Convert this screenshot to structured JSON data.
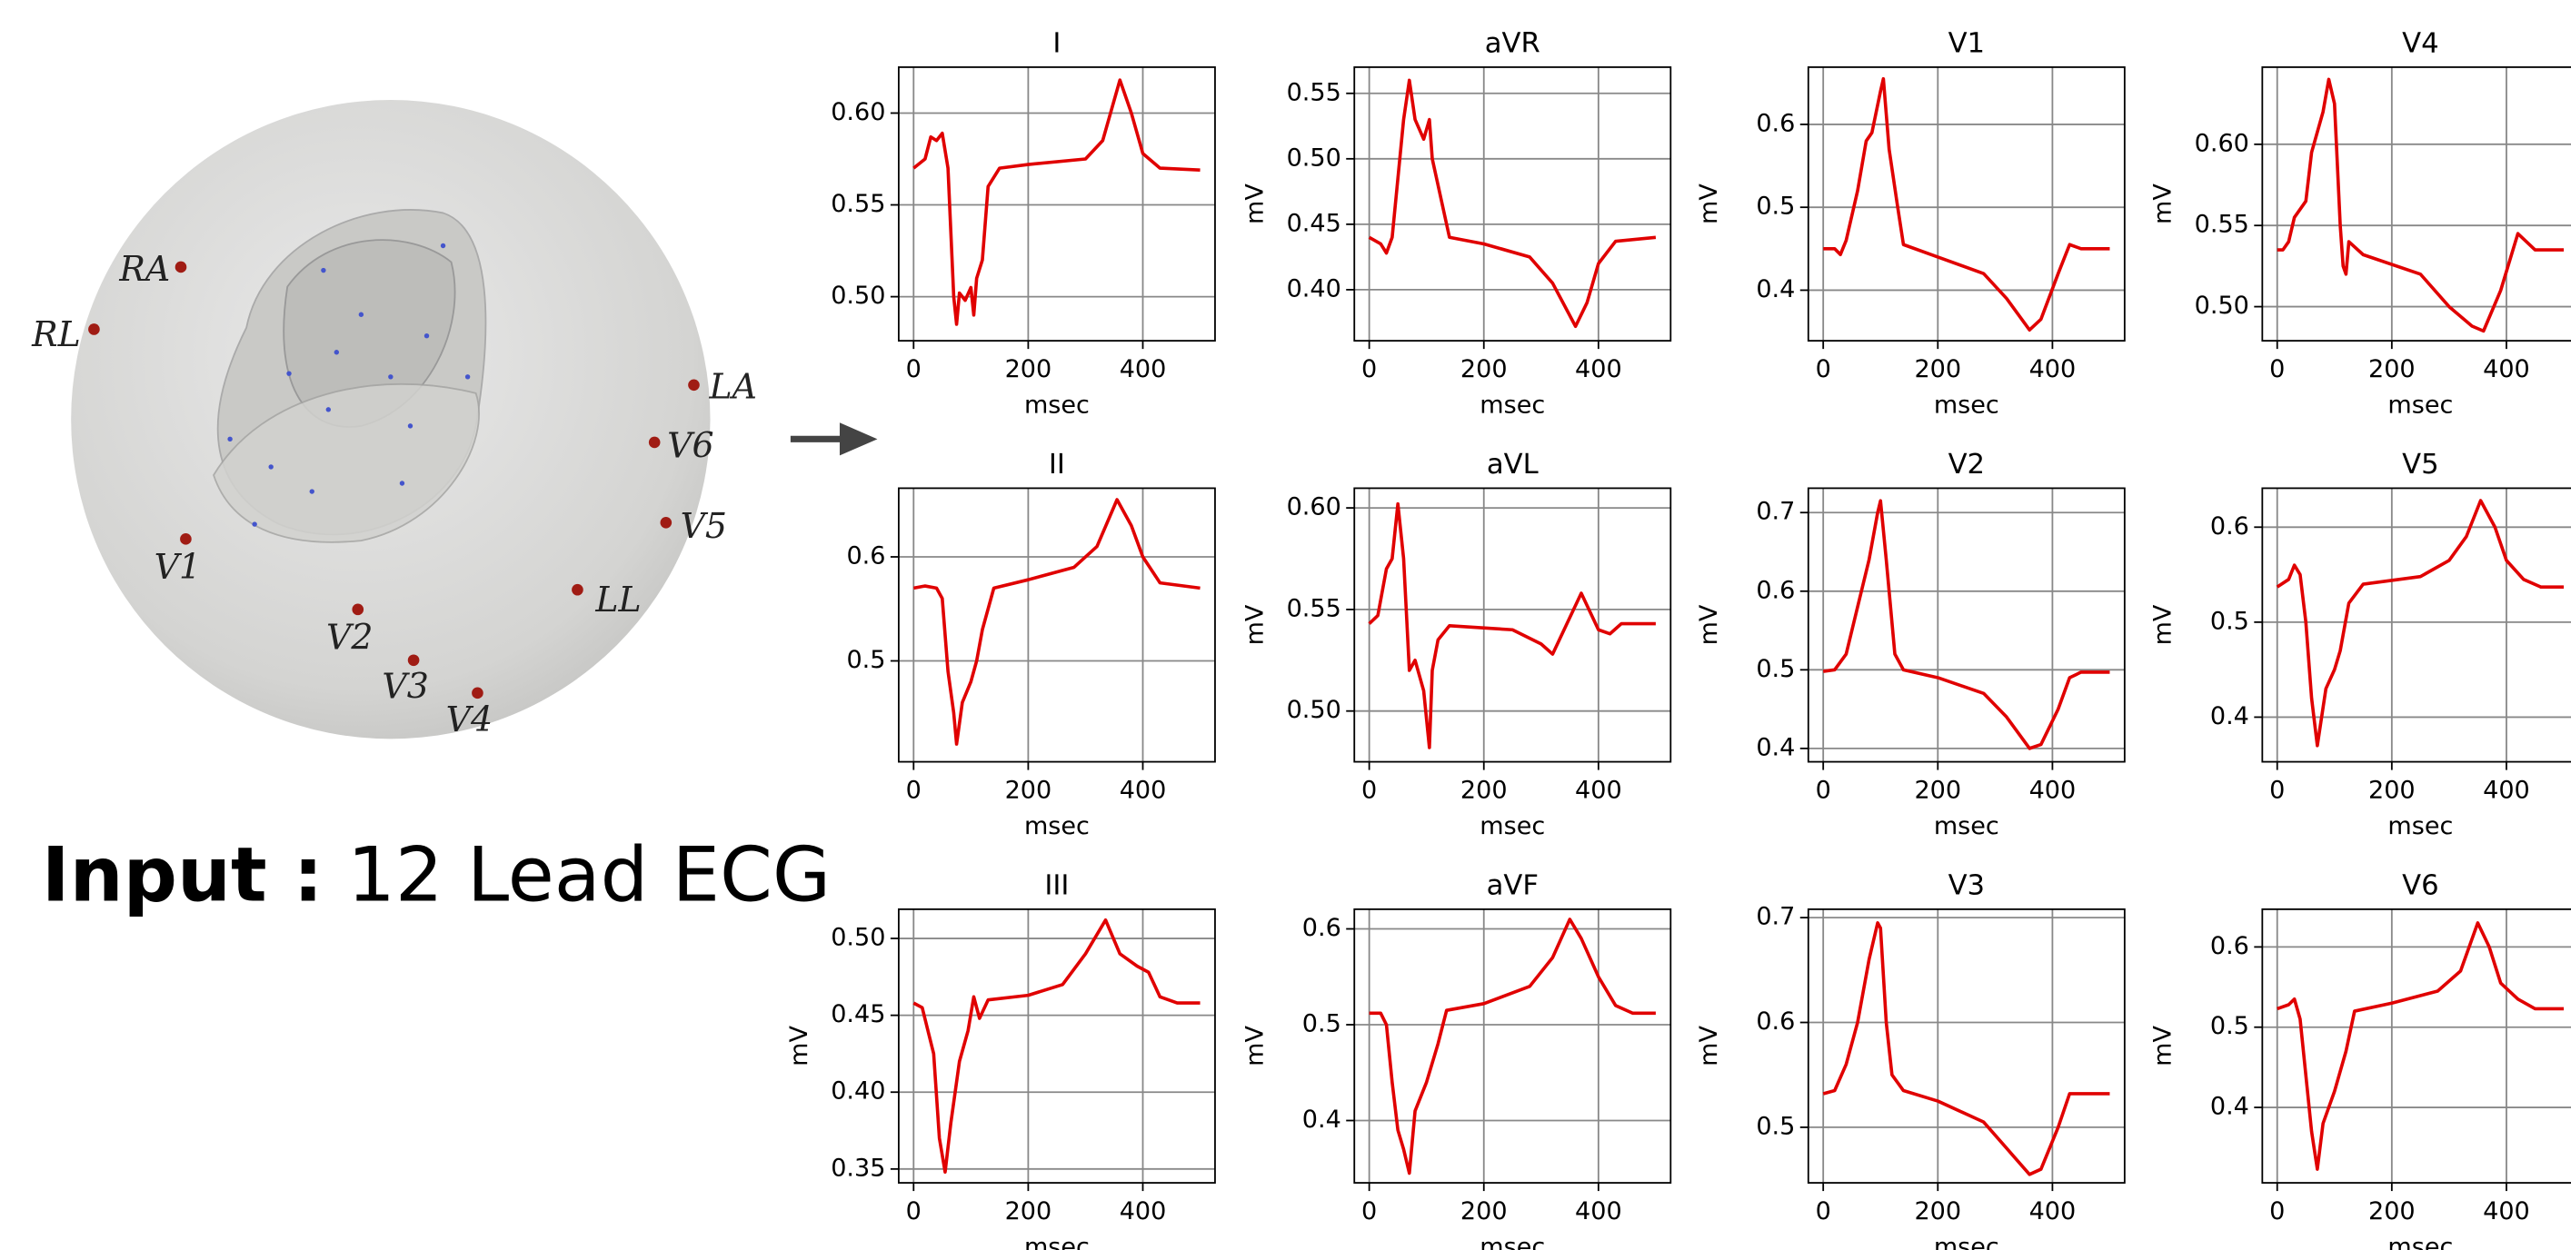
{
  "illustration": {
    "electrodes": [
      "RA",
      "RL",
      "LA",
      "V6",
      "V5",
      "LL",
      "V1",
      "V2",
      "V3",
      "V4"
    ]
  },
  "caption": {
    "label": "Input :",
    "text": "12 Lead ECG"
  },
  "chart_data": [
    {
      "type": "line",
      "title": "I",
      "xlabel": "msec",
      "color": "#e00000",
      "grid": true,
      "xlim": [
        -26,
        526
      ],
      "ylim": [
        0.476,
        0.625
      ],
      "xticks": [
        0,
        200,
        400
      ],
      "yticks": [
        {
          "value": 0.5,
          "label": "0.50"
        },
        {
          "value": 0.55,
          "label": "0.55"
        },
        {
          "value": 0.6,
          "label": "0.60"
        }
      ],
      "x": [
        0,
        20,
        30,
        40,
        50,
        60,
        70,
        75,
        80,
        90,
        100,
        105,
        110,
        120,
        130,
        150,
        200,
        300,
        330,
        360,
        380,
        400,
        430,
        500
      ],
      "values": [
        0.57,
        0.575,
        0.587,
        0.585,
        0.589,
        0.57,
        0.5,
        0.485,
        0.502,
        0.498,
        0.505,
        0.49,
        0.51,
        0.52,
        0.56,
        0.57,
        0.572,
        0.575,
        0.585,
        0.618,
        0.6,
        0.578,
        0.57,
        0.569
      ]
    },
    {
      "type": "line",
      "title": "aVR",
      "xlabel": "msec",
      "ylabel": "mV",
      "color": "#e00000",
      "grid": true,
      "xlim": [
        -26,
        526
      ],
      "ylim": [
        0.361,
        0.57
      ],
      "xticks": [
        0,
        200,
        400
      ],
      "yticks": [
        {
          "value": 0.4,
          "label": "0.40"
        },
        0.45,
        {
          "value": 0.5,
          "label": "0.50"
        },
        0.55
      ],
      "x": [
        0,
        20,
        30,
        40,
        60,
        70,
        80,
        95,
        105,
        110,
        120,
        140,
        200,
        280,
        320,
        360,
        380,
        400,
        430,
        500
      ],
      "values": [
        0.44,
        0.435,
        0.428,
        0.44,
        0.53,
        0.56,
        0.53,
        0.515,
        0.53,
        0.5,
        0.48,
        0.44,
        0.435,
        0.425,
        0.405,
        0.372,
        0.39,
        0.42,
        0.437,
        0.44
      ]
    },
    {
      "type": "line",
      "title": "V1",
      "xlabel": "msec",
      "ylabel": "mV",
      "color": "#e00000",
      "grid": true,
      "xlim": [
        -26,
        526
      ],
      "ylim": [
        0.339,
        0.669
      ],
      "xticks": [
        0,
        200,
        400
      ],
      "yticks": [
        0.4,
        0.5,
        0.6
      ],
      "x": [
        0,
        20,
        30,
        40,
        60,
        75,
        85,
        100,
        105,
        115,
        130,
        140,
        200,
        280,
        320,
        360,
        380,
        410,
        430,
        450,
        500
      ],
      "values": [
        0.45,
        0.45,
        0.443,
        0.46,
        0.52,
        0.58,
        0.59,
        0.64,
        0.655,
        0.57,
        0.5,
        0.455,
        0.44,
        0.42,
        0.39,
        0.352,
        0.365,
        0.42,
        0.455,
        0.45,
        0.45
      ]
    },
    {
      "type": "line",
      "title": "V4",
      "xlabel": "msec",
      "ylabel": "mV",
      "color": "#e00000",
      "grid": true,
      "xlim": [
        -26,
        526
      ],
      "ylim": [
        0.479,
        0.6475
      ],
      "xticks": [
        0,
        200,
        400
      ],
      "yticks": [
        {
          "value": 0.5,
          "label": "0.50"
        },
        0.55,
        {
          "value": 0.6,
          "label": "0.60"
        }
      ],
      "x": [
        0,
        10,
        20,
        30,
        50,
        60,
        80,
        90,
        100,
        110,
        115,
        120,
        125,
        150,
        250,
        300,
        340,
        360,
        390,
        420,
        450,
        500
      ],
      "values": [
        0.535,
        0.535,
        0.54,
        0.555,
        0.565,
        0.595,
        0.62,
        0.64,
        0.625,
        0.55,
        0.525,
        0.52,
        0.54,
        0.532,
        0.52,
        0.5,
        0.488,
        0.485,
        0.51,
        0.545,
        0.535,
        0.535
      ]
    },
    {
      "type": "line",
      "title": "II",
      "xlabel": "msec",
      "color": "#e00000",
      "grid": true,
      "xlim": [
        -26,
        526
      ],
      "ylim": [
        0.403,
        0.666
      ],
      "xticks": [
        0,
        200,
        400
      ],
      "yticks": [
        0.5,
        0.6
      ],
      "x": [
        0,
        20,
        40,
        50,
        60,
        70,
        75,
        85,
        100,
        110,
        120,
        140,
        200,
        280,
        320,
        355,
        380,
        400,
        430,
        500
      ],
      "values": [
        0.57,
        0.572,
        0.57,
        0.56,
        0.49,
        0.45,
        0.42,
        0.46,
        0.48,
        0.5,
        0.53,
        0.57,
        0.578,
        0.59,
        0.61,
        0.655,
        0.63,
        0.6,
        0.575,
        0.57
      ]
    },
    {
      "type": "line",
      "title": "aVL",
      "xlabel": "msec",
      "ylabel": "mV",
      "color": "#e00000",
      "grid": true,
      "xlim": [
        -26,
        526
      ],
      "ylim": [
        0.475,
        0.6097
      ],
      "xticks": [
        0,
        200,
        400
      ],
      "yticks": [
        {
          "value": 0.5,
          "label": "0.50"
        },
        0.55,
        {
          "value": 0.6,
          "label": "0.60"
        }
      ],
      "x": [
        0,
        15,
        30,
        40,
        50,
        60,
        70,
        80,
        95,
        105,
        110,
        120,
        140,
        250,
        300,
        320,
        340,
        370,
        400,
        420,
        440,
        500
      ],
      "values": [
        0.543,
        0.547,
        0.57,
        0.575,
        0.602,
        0.575,
        0.52,
        0.525,
        0.51,
        0.482,
        0.52,
        0.535,
        0.542,
        0.54,
        0.533,
        0.528,
        0.54,
        0.558,
        0.54,
        0.538,
        0.543,
        0.543
      ]
    },
    {
      "type": "line",
      "title": "V2",
      "xlabel": "msec",
      "ylabel": "mV",
      "color": "#e00000",
      "grid": true,
      "xlim": [
        -26,
        526
      ],
      "ylim": [
        0.383,
        0.731
      ],
      "xticks": [
        0,
        200,
        400
      ],
      "yticks": [
        0.4,
        0.5,
        0.6,
        0.7
      ],
      "x": [
        0,
        20,
        40,
        60,
        80,
        95,
        100,
        110,
        125,
        140,
        200,
        280,
        320,
        360,
        380,
        410,
        430,
        450,
        500
      ],
      "values": [
        0.498,
        0.5,
        0.52,
        0.58,
        0.64,
        0.7,
        0.715,
        0.64,
        0.52,
        0.5,
        0.49,
        0.47,
        0.44,
        0.4,
        0.405,
        0.45,
        0.49,
        0.497,
        0.497
      ]
    },
    {
      "type": "line",
      "title": "V5",
      "xlabel": "msec",
      "ylabel": "mV",
      "color": "#e00000",
      "grid": true,
      "xlim": [
        -26,
        526
      ],
      "ylim": [
        0.353,
        0.641
      ],
      "xticks": [
        0,
        200,
        400
      ],
      "yticks": [
        0.4,
        0.5,
        0.6
      ],
      "x": [
        0,
        20,
        30,
        40,
        50,
        60,
        70,
        85,
        100,
        110,
        125,
        150,
        250,
        300,
        330,
        355,
        380,
        400,
        430,
        460,
        500
      ],
      "values": [
        0.537,
        0.545,
        0.56,
        0.55,
        0.5,
        0.42,
        0.37,
        0.43,
        0.45,
        0.47,
        0.52,
        0.54,
        0.548,
        0.565,
        0.59,
        0.628,
        0.6,
        0.565,
        0.545,
        0.537,
        0.537
      ]
    },
    {
      "type": "line",
      "title": "III",
      "xlabel": "msec",
      "ylabel": "mV",
      "color": "#e00000",
      "grid": true,
      "xlim": [
        -26,
        526
      ],
      "ylim": [
        0.341,
        0.519
      ],
      "xticks": [
        0,
        200,
        400
      ],
      "yticks": [
        0.35,
        {
          "value": 0.4,
          "label": "0.40"
        },
        0.45,
        {
          "value": 0.5,
          "label": "0.50"
        }
      ],
      "x": [
        0,
        15,
        25,
        35,
        45,
        55,
        65,
        80,
        95,
        105,
        115,
        130,
        200,
        260,
        300,
        335,
        360,
        390,
        410,
        430,
        460,
        500
      ],
      "values": [
        0.458,
        0.455,
        0.44,
        0.425,
        0.37,
        0.348,
        0.38,
        0.42,
        0.44,
        0.462,
        0.448,
        0.46,
        0.463,
        0.47,
        0.49,
        0.512,
        0.49,
        0.482,
        0.478,
        0.462,
        0.458,
        0.458
      ]
    },
    {
      "type": "line",
      "title": "aVF",
      "xlabel": "msec",
      "ylabel": "mV",
      "color": "#e00000",
      "grid": true,
      "xlim": [
        -26,
        526
      ],
      "ylim": [
        0.335,
        0.6205
      ],
      "xticks": [
        0,
        200,
        400
      ],
      "yticks": [
        0.4,
        0.5,
        0.6
      ],
      "x": [
        0,
        20,
        30,
        40,
        50,
        60,
        70,
        80,
        100,
        120,
        135,
        200,
        280,
        320,
        350,
        370,
        400,
        430,
        460,
        500
      ],
      "values": [
        0.512,
        0.512,
        0.5,
        0.44,
        0.39,
        0.37,
        0.345,
        0.41,
        0.44,
        0.48,
        0.515,
        0.522,
        0.54,
        0.57,
        0.61,
        0.59,
        0.55,
        0.52,
        0.512,
        0.512
      ]
    },
    {
      "type": "line",
      "title": "V3",
      "xlabel": "msec",
      "ylabel": "mV",
      "color": "#e00000",
      "grid": true,
      "xlim": [
        -26,
        526
      ],
      "ylim": [
        0.447,
        0.708
      ],
      "xticks": [
        0,
        200,
        400
      ],
      "yticks": [
        0.5,
        0.6,
        0.7
      ],
      "x": [
        0,
        20,
        40,
        60,
        80,
        95,
        100,
        110,
        120,
        140,
        200,
        280,
        320,
        360,
        380,
        410,
        430,
        450,
        500
      ],
      "values": [
        0.532,
        0.535,
        0.56,
        0.6,
        0.66,
        0.695,
        0.69,
        0.6,
        0.55,
        0.535,
        0.525,
        0.505,
        0.48,
        0.455,
        0.46,
        0.5,
        0.532,
        0.532,
        0.532
      ]
    },
    {
      "type": "line",
      "title": "V6",
      "xlabel": "msec",
      "ylabel": "mV",
      "color": "#e00000",
      "grid": true,
      "xlim": [
        -26,
        526
      ],
      "ylim": [
        0.306,
        0.647
      ],
      "xticks": [
        0,
        200,
        400
      ],
      "yticks": [
        0.4,
        0.5,
        0.6
      ],
      "x": [
        0,
        20,
        30,
        40,
        50,
        60,
        70,
        80,
        100,
        120,
        135,
        200,
        280,
        320,
        350,
        370,
        390,
        420,
        450,
        500
      ],
      "values": [
        0.523,
        0.528,
        0.535,
        0.51,
        0.44,
        0.37,
        0.323,
        0.38,
        0.42,
        0.47,
        0.52,
        0.53,
        0.545,
        0.57,
        0.63,
        0.6,
        0.555,
        0.535,
        0.523,
        0.523
      ]
    }
  ]
}
